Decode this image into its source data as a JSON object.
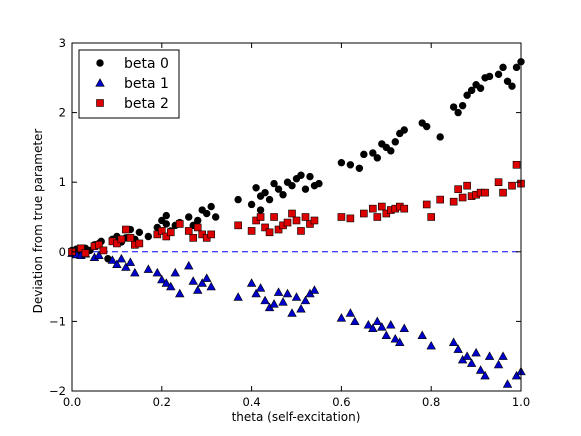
{
  "chart_data": {
    "type": "scatter",
    "title": "",
    "xlabel": "theta (self-excitation)",
    "ylabel": "Deviation from true parameter",
    "xlim": [
      0.0,
      1.0
    ],
    "ylim": [
      -2,
      3
    ],
    "xticks": [
      "0.0",
      "0.2",
      "0.4",
      "0.6",
      "0.8",
      "1.0"
    ],
    "yticks": [
      "−2",
      "−1",
      "0",
      "1",
      "2",
      "3"
    ],
    "reference_line": {
      "y": 0,
      "style": "dashed",
      "color": "#0000ff"
    },
    "legend_position": "top-left",
    "series": [
      {
        "name": "beta 0",
        "marker": "circle",
        "color": "#000000",
        "points": [
          [
            0.0,
            0.02
          ],
          [
            0.01,
            0.04
          ],
          [
            0.02,
            0.0
          ],
          [
            0.03,
            0.05
          ],
          [
            0.04,
            0.02
          ],
          [
            0.05,
            0.1
          ],
          [
            0.06,
            0.12
          ],
          [
            0.065,
            0.15
          ],
          [
            0.08,
            -0.1
          ],
          [
            0.09,
            0.18
          ],
          [
            0.1,
            0.22
          ],
          [
            0.11,
            0.14
          ],
          [
            0.12,
            0.2
          ],
          [
            0.13,
            0.32
          ],
          [
            0.14,
            0.18
          ],
          [
            0.15,
            0.28
          ],
          [
            0.17,
            0.22
          ],
          [
            0.19,
            0.35
          ],
          [
            0.2,
            0.45
          ],
          [
            0.21,
            0.4
          ],
          [
            0.21,
            0.52
          ],
          [
            0.22,
            0.3
          ],
          [
            0.23,
            0.38
          ],
          [
            0.24,
            0.42
          ],
          [
            0.26,
            0.5
          ],
          [
            0.27,
            0.38
          ],
          [
            0.28,
            0.45
          ],
          [
            0.29,
            0.6
          ],
          [
            0.3,
            0.55
          ],
          [
            0.31,
            0.65
          ],
          [
            0.32,
            0.5
          ],
          [
            0.37,
            0.75
          ],
          [
            0.4,
            0.68
          ],
          [
            0.41,
            0.92
          ],
          [
            0.42,
            0.8
          ],
          [
            0.42,
            0.6
          ],
          [
            0.43,
            0.85
          ],
          [
            0.44,
            0.75
          ],
          [
            0.45,
            0.98
          ],
          [
            0.46,
            0.9
          ],
          [
            0.47,
            0.82
          ],
          [
            0.48,
            1.0
          ],
          [
            0.49,
            0.95
          ],
          [
            0.5,
            1.05
          ],
          [
            0.51,
            1.1
          ],
          [
            0.52,
            0.9
          ],
          [
            0.53,
            1.08
          ],
          [
            0.54,
            0.95
          ],
          [
            0.55,
            0.98
          ],
          [
            0.6,
            1.28
          ],
          [
            0.62,
            1.25
          ],
          [
            0.64,
            1.2
          ],
          [
            0.65,
            1.4
          ],
          [
            0.67,
            1.42
          ],
          [
            0.68,
            1.35
          ],
          [
            0.69,
            1.55
          ],
          [
            0.7,
            1.5
          ],
          [
            0.71,
            1.45
          ],
          [
            0.72,
            1.58
          ],
          [
            0.73,
            1.7
          ],
          [
            0.74,
            1.75
          ],
          [
            0.78,
            1.85
          ],
          [
            0.79,
            1.8
          ],
          [
            0.82,
            1.65
          ],
          [
            0.85,
            2.08
          ],
          [
            0.86,
            2.0
          ],
          [
            0.87,
            2.1
          ],
          [
            0.88,
            2.25
          ],
          [
            0.89,
            2.32
          ],
          [
            0.9,
            2.4
          ],
          [
            0.91,
            2.35
          ],
          [
            0.92,
            2.5
          ],
          [
            0.93,
            2.52
          ],
          [
            0.95,
            2.55
          ],
          [
            0.96,
            2.65
          ],
          [
            0.97,
            2.45
          ],
          [
            0.98,
            2.38
          ],
          [
            0.99,
            2.65
          ],
          [
            1.0,
            2.73
          ]
        ]
      },
      {
        "name": "beta 1",
        "marker": "triangle",
        "color": "#0000cc",
        "points": [
          [
            0.0,
            -0.02
          ],
          [
            0.01,
            -0.04
          ],
          [
            0.02,
            -0.05
          ],
          [
            0.03,
            -0.03
          ],
          [
            0.05,
            -0.08
          ],
          [
            0.06,
            -0.05
          ],
          [
            0.09,
            -0.12
          ],
          [
            0.1,
            -0.18
          ],
          [
            0.11,
            -0.1
          ],
          [
            0.12,
            -0.22
          ],
          [
            0.13,
            -0.15
          ],
          [
            0.14,
            -0.3
          ],
          [
            0.17,
            -0.25
          ],
          [
            0.19,
            -0.3
          ],
          [
            0.2,
            -0.4
          ],
          [
            0.21,
            -0.45
          ],
          [
            0.22,
            -0.5
          ],
          [
            0.23,
            -0.3
          ],
          [
            0.24,
            -0.6
          ],
          [
            0.26,
            -0.2
          ],
          [
            0.27,
            -0.42
          ],
          [
            0.28,
            -0.55
          ],
          [
            0.29,
            -0.45
          ],
          [
            0.3,
            -0.38
          ],
          [
            0.31,
            -0.5
          ],
          [
            0.37,
            -0.65
          ],
          [
            0.4,
            -0.45
          ],
          [
            0.41,
            -0.6
          ],
          [
            0.42,
            -0.52
          ],
          [
            0.43,
            -0.7
          ],
          [
            0.44,
            -0.8
          ],
          [
            0.45,
            -0.75
          ],
          [
            0.46,
            -0.58
          ],
          [
            0.47,
            -0.72
          ],
          [
            0.48,
            -0.6
          ],
          [
            0.49,
            -0.88
          ],
          [
            0.5,
            -0.65
          ],
          [
            0.51,
            -0.82
          ],
          [
            0.52,
            -0.7
          ],
          [
            0.53,
            -0.6
          ],
          [
            0.54,
            -0.55
          ],
          [
            0.6,
            -0.95
          ],
          [
            0.62,
            -0.88
          ],
          [
            0.63,
            -1.0
          ],
          [
            0.66,
            -1.05
          ],
          [
            0.67,
            -1.1
          ],
          [
            0.68,
            -1.0
          ],
          [
            0.69,
            -1.08
          ],
          [
            0.7,
            -1.2
          ],
          [
            0.71,
            -1.05
          ],
          [
            0.72,
            -1.25
          ],
          [
            0.73,
            -1.3
          ],
          [
            0.74,
            -1.1
          ],
          [
            0.78,
            -1.2
          ],
          [
            0.8,
            -1.35
          ],
          [
            0.85,
            -1.3
          ],
          [
            0.86,
            -1.4
          ],
          [
            0.87,
            -1.55
          ],
          [
            0.88,
            -1.5
          ],
          [
            0.89,
            -1.6
          ],
          [
            0.9,
            -1.45
          ],
          [
            0.91,
            -1.7
          ],
          [
            0.92,
            -1.78
          ],
          [
            0.93,
            -1.5
          ],
          [
            0.95,
            -1.62
          ],
          [
            0.96,
            -1.5
          ],
          [
            0.97,
            -1.9
          ],
          [
            0.99,
            -1.78
          ],
          [
            1.0,
            -1.72
          ]
        ]
      },
      {
        "name": "beta 2",
        "marker": "square",
        "color": "#dd0000",
        "points": [
          [
            0.0,
            0.0
          ],
          [
            0.02,
            0.05
          ],
          [
            0.03,
            -0.02
          ],
          [
            0.05,
            0.08
          ],
          [
            0.06,
            0.1
          ],
          [
            0.07,
            0.02
          ],
          [
            0.09,
            0.15
          ],
          [
            0.1,
            0.12
          ],
          [
            0.11,
            0.18
          ],
          [
            0.12,
            0.32
          ],
          [
            0.13,
            0.2
          ],
          [
            0.14,
            0.1
          ],
          [
            0.15,
            0.12
          ],
          [
            0.19,
            0.25
          ],
          [
            0.2,
            0.3
          ],
          [
            0.21,
            0.22
          ],
          [
            0.22,
            0.28
          ],
          [
            0.24,
            0.4
          ],
          [
            0.26,
            0.3
          ],
          [
            0.27,
            0.2
          ],
          [
            0.28,
            0.35
          ],
          [
            0.29,
            0.25
          ],
          [
            0.3,
            0.2
          ],
          [
            0.31,
            0.25
          ],
          [
            0.37,
            0.38
          ],
          [
            0.4,
            0.3
          ],
          [
            0.41,
            0.45
          ],
          [
            0.42,
            0.5
          ],
          [
            0.43,
            0.35
          ],
          [
            0.44,
            0.28
          ],
          [
            0.45,
            0.5
          ],
          [
            0.46,
            0.32
          ],
          [
            0.47,
            0.38
          ],
          [
            0.48,
            0.42
          ],
          [
            0.49,
            0.55
          ],
          [
            0.5,
            0.45
          ],
          [
            0.51,
            0.3
          ],
          [
            0.52,
            0.5
          ],
          [
            0.53,
            0.4
          ],
          [
            0.54,
            0.45
          ],
          [
            0.6,
            0.5
          ],
          [
            0.62,
            0.48
          ],
          [
            0.65,
            0.55
          ],
          [
            0.67,
            0.62
          ],
          [
            0.68,
            0.5
          ],
          [
            0.69,
            0.65
          ],
          [
            0.7,
            0.55
          ],
          [
            0.71,
            0.6
          ],
          [
            0.72,
            0.62
          ],
          [
            0.73,
            0.65
          ],
          [
            0.74,
            0.62
          ],
          [
            0.79,
            0.68
          ],
          [
            0.8,
            0.5
          ],
          [
            0.82,
            0.75
          ],
          [
            0.85,
            0.72
          ],
          [
            0.86,
            0.9
          ],
          [
            0.87,
            0.78
          ],
          [
            0.88,
            0.95
          ],
          [
            0.89,
            0.8
          ],
          [
            0.9,
            0.82
          ],
          [
            0.91,
            0.85
          ],
          [
            0.92,
            0.85
          ],
          [
            0.95,
            1.0
          ],
          [
            0.96,
            0.85
          ],
          [
            0.98,
            0.95
          ],
          [
            0.99,
            1.25
          ],
          [
            1.0,
            0.98
          ]
        ]
      }
    ]
  }
}
